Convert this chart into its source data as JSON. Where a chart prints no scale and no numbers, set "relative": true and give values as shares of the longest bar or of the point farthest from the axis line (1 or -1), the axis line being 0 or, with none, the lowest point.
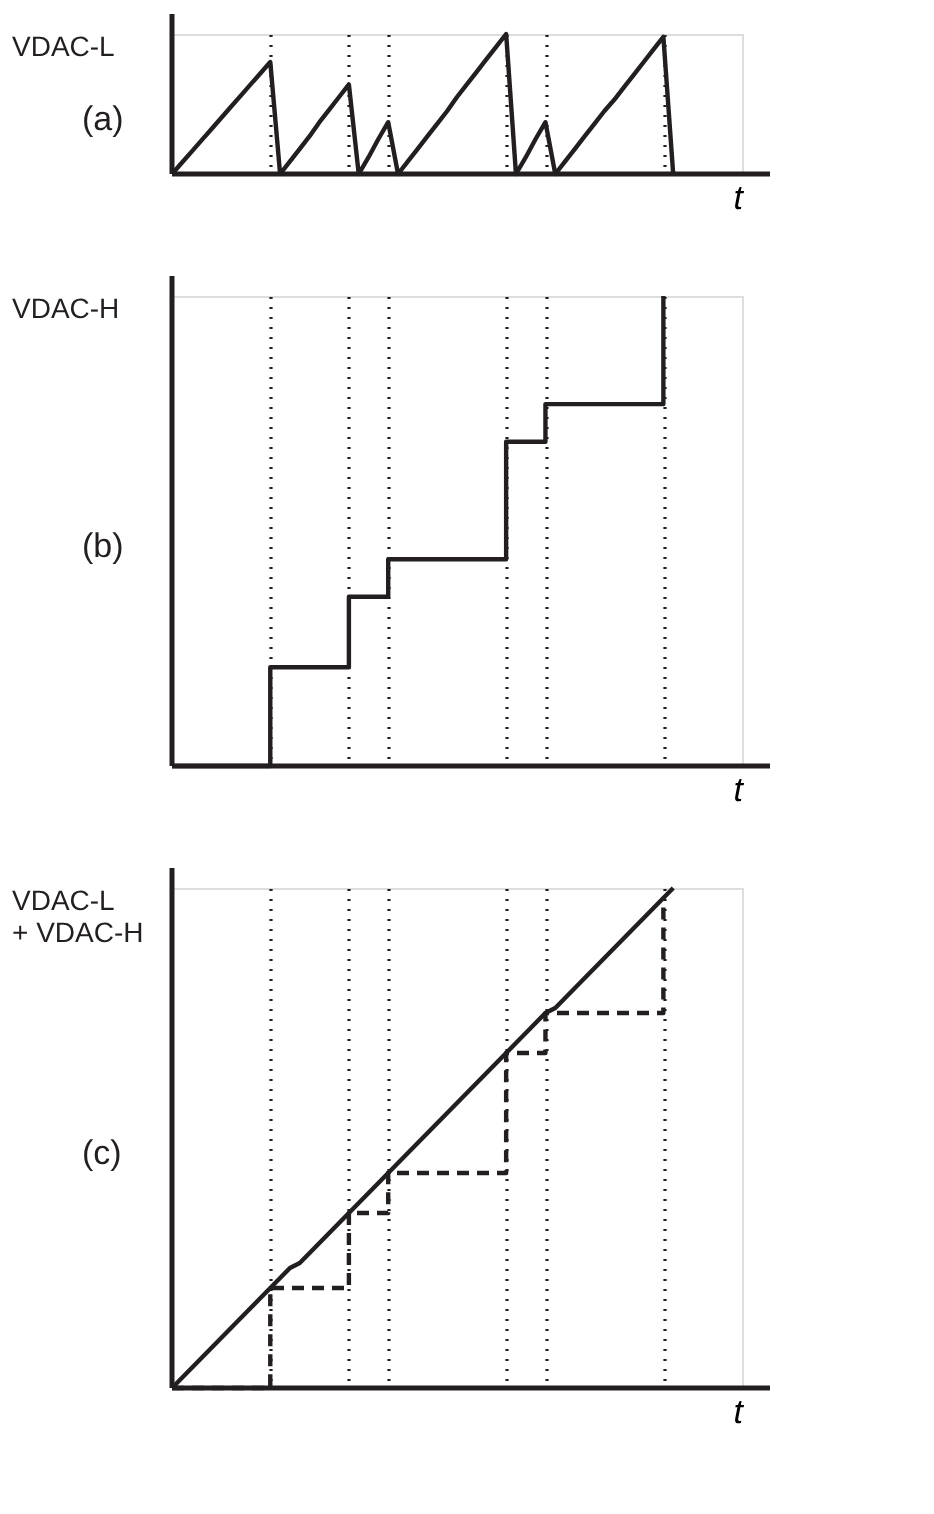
{
  "chart_data": [
    {
      "type": "line",
      "title": "(a)",
      "ylabel": "VDAC-L",
      "xlabel": "t",
      "relative": true,
      "tick_labels": false,
      "grid": "x",
      "marker": "none",
      "categories": [
        null,
        null,
        null,
        null,
        null,
        null,
        null,
        null,
        null,
        null,
        null,
        null,
        null,
        null,
        null,
        null,
        null,
        null,
        null,
        null,
        null,
        null,
        null,
        null,
        null,
        null,
        null,
        null,
        null,
        null,
        null,
        null,
        null,
        null,
        null,
        null,
        null,
        null,
        null,
        null,
        null,
        null,
        null,
        null,
        null,
        null,
        null,
        null,
        null,
        null,
        null,
        null,
        null,
        null,
        null,
        null,
        null,
        null,
        null
      ],
      "series": [
        {
          "color": "#231f20",
          "line_style": "solid",
          "values": [
            0,
            0.08,
            0.16,
            0.24,
            0.32,
            0.4,
            0.48,
            0.56,
            0.64,
            0.72,
            0.8,
            0,
            0.09,
            0.18,
            0.27,
            0.37,
            0.46,
            0.55,
            0.64,
            0,
            0.12,
            0.25,
            0.37,
            0,
            0.09,
            0.18,
            0.27,
            0.36,
            0.45,
            0.55,
            0.64,
            0.73,
            0.82,
            0.91,
            1,
            0,
            0.12,
            0.25,
            0.37,
            0,
            0.09,
            0.18,
            0.27,
            0.36,
            0.45,
            0.53,
            0.62,
            0.71,
            0.8,
            0.89,
            0.98,
            0,
            null,
            null,
            null,
            null,
            null,
            null,
            null
          ]
        }
      ]
    },
    {
      "type": "step",
      "title": "(b)",
      "ylabel": "VDAC-H",
      "xlabel": "t",
      "relative": true,
      "tick_labels": false,
      "grid": "x",
      "marker": "none",
      "categories": [
        null,
        null,
        null,
        null,
        null,
        null,
        null,
        null,
        null,
        null,
        null,
        null,
        null,
        null,
        null,
        null,
        null,
        null,
        null,
        null,
        null,
        null,
        null,
        null,
        null,
        null,
        null,
        null,
        null,
        null,
        null,
        null,
        null,
        null,
        null,
        null,
        null,
        null,
        null,
        null,
        null,
        null,
        null,
        null,
        null,
        null,
        null,
        null,
        null,
        null,
        null,
        null,
        null,
        null,
        null,
        null,
        null,
        null,
        null
      ],
      "series": [
        {
          "color": "#231f20",
          "line_style": "solid",
          "values": [
            0,
            0,
            0,
            0,
            0,
            0,
            0,
            0,
            0,
            0,
            0.21,
            0.21,
            0.21,
            0.21,
            0.21,
            0.21,
            0.21,
            0.21,
            0.36,
            0.36,
            0.36,
            0.36,
            0.44,
            0.44,
            0.44,
            0.44,
            0.44,
            0.44,
            0.44,
            0.44,
            0.44,
            0.44,
            0.44,
            0.44,
            0.69,
            0.69,
            0.69,
            0.69,
            0.77,
            0.77,
            0.77,
            0.77,
            0.77,
            0.77,
            0.77,
            0.77,
            0.77,
            0.77,
            0.77,
            0.77,
            1,
            null,
            null,
            null,
            null,
            null,
            null,
            null,
            null
          ]
        }
      ]
    },
    {
      "type": "line",
      "title": "(c)",
      "ylabel": "VDAC-L\n+ VDAC-H",
      "xlabel": "t",
      "relative": true,
      "tick_labels": false,
      "grid": "x",
      "marker": "none",
      "categories": [
        null,
        null,
        null,
        null,
        null,
        null,
        null,
        null,
        null,
        null,
        null,
        null,
        null,
        null,
        null,
        null,
        null,
        null,
        null,
        null,
        null,
        null,
        null,
        null,
        null,
        null,
        null,
        null,
        null,
        null,
        null,
        null,
        null,
        null,
        null,
        null,
        null,
        null,
        null,
        null,
        null,
        null,
        null,
        null,
        null,
        null,
        null,
        null,
        null,
        null,
        null,
        null,
        null,
        null,
        null,
        null,
        null,
        null,
        null
      ],
      "series": [
        {
          "color": "#231f20",
          "line_style": "solid",
          "values": [
            0,
            0.02,
            0.04,
            0.06,
            0.08,
            0.1,
            0.12,
            0.14,
            0.16,
            0.18,
            0.2,
            0.22,
            0.24,
            0.25,
            0.27,
            0.29,
            0.31,
            0.33,
            0.35,
            0.37,
            0.39,
            0.41,
            0.43,
            0.45,
            0.47,
            0.49,
            0.51,
            0.53,
            0.55,
            0.57,
            0.59,
            0.61,
            0.63,
            0.65,
            0.67,
            0.69,
            0.71,
            0.73,
            0.75,
            0.76,
            0.78,
            0.8,
            0.82,
            0.84,
            0.86,
            0.88,
            0.9,
            0.92,
            0.94,
            0.96,
            0.98,
            1,
            null,
            null,
            null,
            null,
            null,
            null,
            null
          ]
        },
        {
          "type": "step",
          "color": "#231f20",
          "line_style": "dashed",
          "values": [
            0,
            0,
            0,
            0,
            0,
            0,
            0,
            0,
            0,
            0,
            0.2,
            0.2,
            0.2,
            0.2,
            0.2,
            0.2,
            0.2,
            0.2,
            0.35,
            0.35,
            0.35,
            0.35,
            0.43,
            0.43,
            0.43,
            0.43,
            0.43,
            0.43,
            0.43,
            0.43,
            0.43,
            0.43,
            0.43,
            0.43,
            0.67,
            0.67,
            0.67,
            0.67,
            0.75,
            0.75,
            0.75,
            0.75,
            0.75,
            0.75,
            0.75,
            0.75,
            0.75,
            0.75,
            0.75,
            0.75,
            0.98,
            null,
            null,
            null,
            null,
            null,
            null,
            null,
            null
          ]
        }
      ]
    }
  ]
}
